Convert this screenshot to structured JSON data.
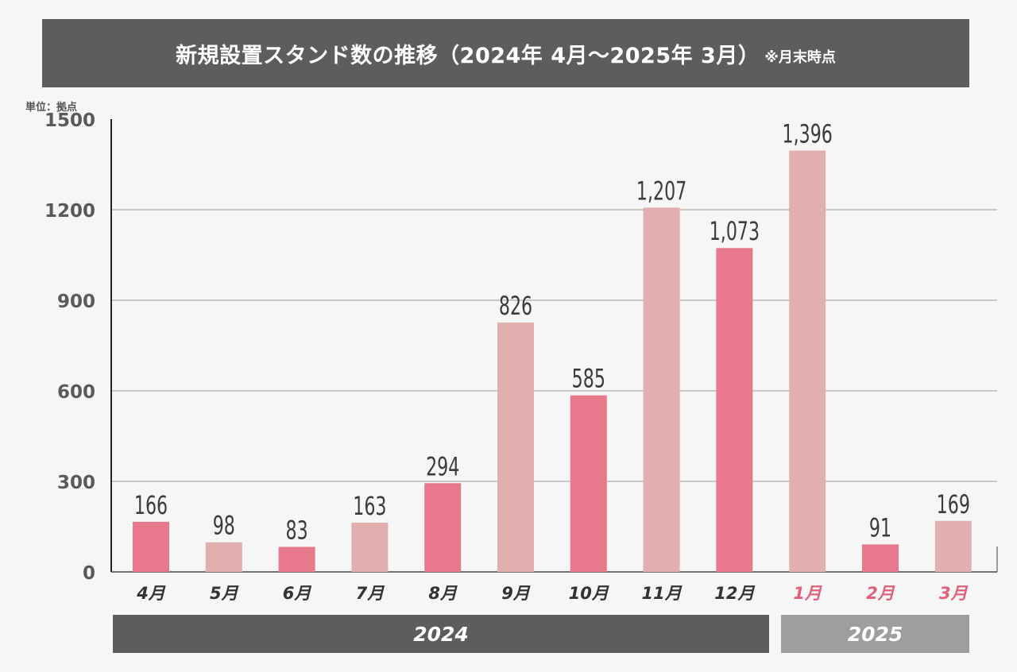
{
  "title": {
    "main": "新規設置スタンド数の推移（2024年 4月〜2025年 3月）",
    "note": "※月末時点"
  },
  "unit_label": "単位：拠点",
  "colors": {
    "dark_bar": "#e8788c",
    "light_bar": "#e2afaf",
    "title_bg": "#5e5c5c",
    "band_2024": "#5e5c5c",
    "band_2025": "#9e9e9e",
    "label_2024": "#333333",
    "label_2025": "#e0607a"
  },
  "chart_data": {
    "type": "bar",
    "title": "新規設置スタンド数の推移（2024年 4月〜2025年 3月）",
    "ylabel": "単位：拠点",
    "ylim": [
      0,
      1500
    ],
    "yticks": [
      0,
      300,
      600,
      900,
      1200,
      1500
    ],
    "grid": true,
    "categories": [
      "4月",
      "5月",
      "6月",
      "7月",
      "8月",
      "9月",
      "10月",
      "11月",
      "12月",
      "1月",
      "2月",
      "3月"
    ],
    "values": [
      166,
      98,
      83,
      163,
      294,
      826,
      585,
      1207,
      1073,
      1396,
      91,
      169
    ],
    "value_labels": [
      "166",
      "98",
      "83",
      "163",
      "294",
      "826",
      "585",
      "1,207",
      "1,073",
      "1,396",
      "91",
      "169"
    ],
    "bar_shades": [
      "dark",
      "light",
      "dark",
      "light",
      "dark",
      "light",
      "dark",
      "light",
      "dark",
      "light",
      "dark",
      "light"
    ],
    "category_years": [
      "2024",
      "2024",
      "2024",
      "2024",
      "2024",
      "2024",
      "2024",
      "2024",
      "2024",
      "2025",
      "2025",
      "2025"
    ]
  },
  "year_groups": {
    "y2024": "2024",
    "y2025": "2025"
  }
}
